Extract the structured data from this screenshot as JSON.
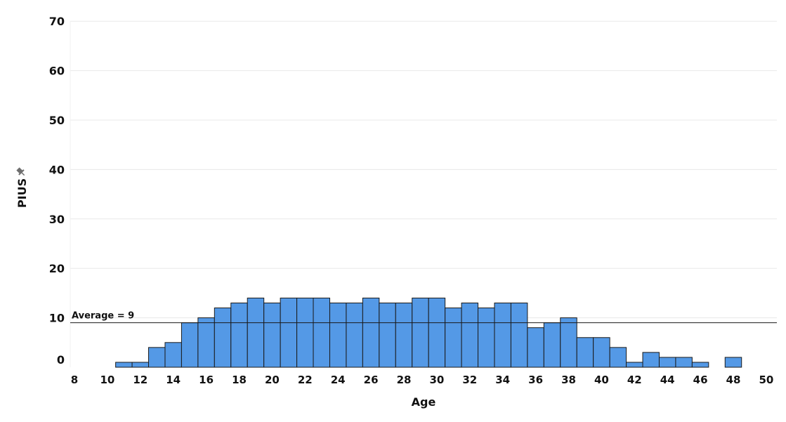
{
  "chart_data": {
    "type": "bar",
    "xlabel": "Age",
    "ylabel": "PIUS",
    "pin_icon": "pin-icon",
    "bar_color": "#5499e6",
    "x_ticks": [
      8,
      10,
      12,
      14,
      16,
      18,
      20,
      22,
      24,
      26,
      28,
      30,
      32,
      34,
      36,
      38,
      40,
      42,
      44,
      46,
      48,
      50
    ],
    "y_ticks": [
      0,
      10,
      20,
      30,
      40,
      50,
      60,
      70
    ],
    "xlim": [
      8,
      50.8
    ],
    "ylim": [
      0,
      70
    ],
    "grid": true,
    "reference_line": {
      "label": "Average = 9",
      "value": 9
    },
    "x": [
      11,
      12,
      13,
      14,
      15,
      16,
      17,
      18,
      19,
      20,
      21,
      22,
      23,
      24,
      25,
      26,
      27,
      28,
      29,
      30,
      31,
      32,
      33,
      34,
      35,
      36,
      37,
      38,
      39,
      40,
      41,
      42,
      43,
      44,
      45,
      46,
      48
    ],
    "values": [
      1,
      1,
      4,
      5,
      9,
      10,
      12,
      13,
      14,
      13,
      14,
      14,
      14,
      13,
      13,
      14,
      13,
      13,
      14,
      14,
      12,
      13,
      12,
      13,
      13,
      8,
      9,
      10,
      6,
      6,
      4,
      1,
      3,
      2,
      2,
      1,
      2
    ]
  }
}
